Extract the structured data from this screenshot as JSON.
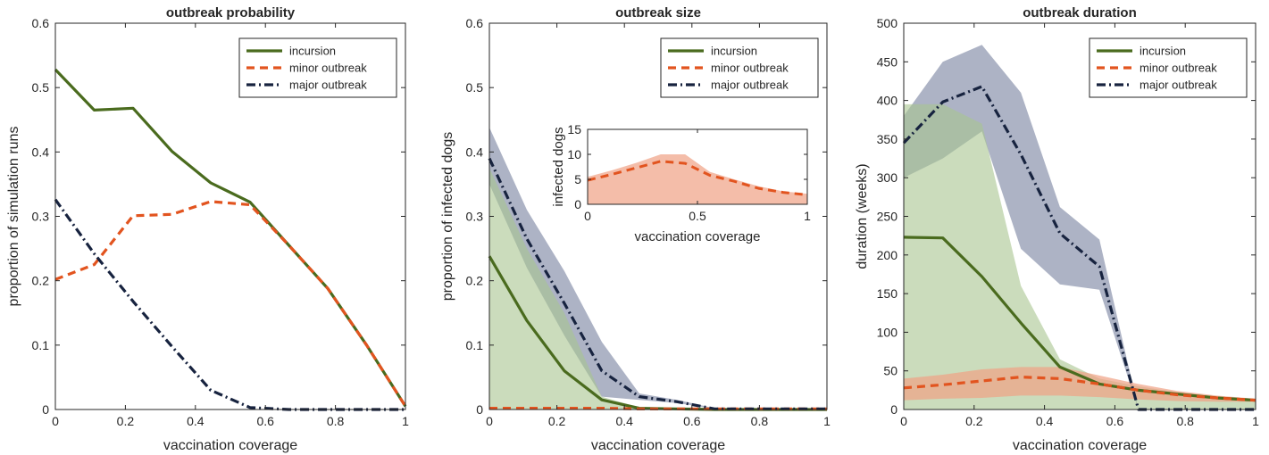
{
  "figure": {
    "panels": 3
  },
  "colors": {
    "incursion": "#4a6b1e",
    "minor": "#e2541f",
    "major": "#17233f",
    "incursion_band": "#a9c48f",
    "minor_band": "#f0a184",
    "major_band": "#8a93ad"
  },
  "chart_data": [
    {
      "type": "line",
      "title": "outbreak probability",
      "xlabel": "vaccination coverage",
      "ylabel": "proportion of simulation runs",
      "xlim": [
        0,
        1
      ],
      "ylim": [
        0,
        0.6
      ],
      "xticks": [
        0,
        0.2,
        0.4,
        0.6,
        0.8,
        1
      ],
      "xtick_labels": [
        "0",
        "0.2",
        "0.4",
        "0.6",
        "0.8",
        "1"
      ],
      "yticks": [
        0,
        0.1,
        0.2,
        0.3,
        0.4,
        0.5,
        0.6
      ],
      "ytick_labels": [
        "0",
        "0.1",
        "0.2",
        "0.3",
        "0.4",
        "0.5",
        "0.6"
      ],
      "legend": "top-right",
      "grid": false,
      "x": [
        0,
        0.111,
        0.222,
        0.333,
        0.444,
        0.556,
        0.667,
        0.778,
        0.889,
        1
      ],
      "series": [
        {
          "name": "incursion",
          "key": "incursion",
          "style": "solid",
          "values": [
            0.528,
            0.465,
            0.468,
            0.401,
            0.352,
            0.322,
            0.255,
            0.188,
            0.1,
            0.005
          ]
        },
        {
          "name": "minor outbreak",
          "key": "minor",
          "style": "dashed",
          "values": [
            0.202,
            0.225,
            0.301,
            0.303,
            0.323,
            0.318,
            0.255,
            0.188,
            0.1,
            0.005
          ]
        },
        {
          "name": "major outbreak",
          "key": "major",
          "style": "dashdot",
          "values": [
            0.326,
            0.242,
            0.168,
            0.098,
            0.03,
            0.003,
            0,
            0,
            0,
            0
          ]
        }
      ],
      "bands": []
    },
    {
      "type": "line",
      "title": "outbreak size",
      "xlabel": "vaccination coverage",
      "ylabel": "proportion of infected dogs",
      "xlim": [
        0,
        1
      ],
      "ylim": [
        0,
        0.6
      ],
      "xticks": [
        0,
        0.2,
        0.4,
        0.6,
        0.8,
        1
      ],
      "xtick_labels": [
        "0",
        "0.2",
        "0.4",
        "0.6",
        "0.8",
        "1"
      ],
      "yticks": [
        0,
        0.1,
        0.2,
        0.3,
        0.4,
        0.5,
        0.6
      ],
      "ytick_labels": [
        "0",
        "0.1",
        "0.2",
        "0.3",
        "0.4",
        "0.5",
        "0.6"
      ],
      "legend": "top-right",
      "grid": false,
      "x": [
        0,
        0.111,
        0.222,
        0.333,
        0.444,
        0.556,
        0.667,
        0.778,
        0.889,
        1
      ],
      "series": [
        {
          "name": "incursion",
          "key": "incursion",
          "style": "solid",
          "values": [
            0.238,
            0.138,
            0.06,
            0.015,
            0.002,
            0.001,
            0,
            0,
            0,
            0
          ]
        },
        {
          "name": "minor outbreak",
          "key": "minor",
          "style": "dashed",
          "values": [
            0.002,
            0.002,
            0.002,
            0.002,
            0.001,
            0.001,
            0.001,
            0.001,
            0.001,
            0.001
          ]
        },
        {
          "name": "major outbreak",
          "key": "major",
          "style": "dashdot",
          "values": [
            0.39,
            0.265,
            0.165,
            0.06,
            0.02,
            0.012,
            0.001,
            0.001,
            0.001,
            0.001
          ]
        }
      ],
      "bands": [
        {
          "key": "major_band",
          "upper": [
            0.438,
            0.31,
            0.215,
            0.105,
            0.025,
            0.015,
            0.002,
            0.002,
            0.002,
            0.002
          ],
          "lower": [
            0.35,
            0.22,
            0.115,
            0.02,
            0.015,
            0.01,
            0.001,
            0.001,
            0.001,
            0.001
          ]
        },
        {
          "key": "incursion_band",
          "upper": [
            0.375,
            0.25,
            0.15,
            0.02,
            0.003,
            0.002,
            0.001,
            0,
            0,
            0
          ],
          "lower": [
            0,
            0,
            0,
            0,
            0,
            0,
            0,
            0,
            0,
            0
          ]
        }
      ],
      "inset": {
        "type": "area",
        "xlabel": "vaccination coverage",
        "ylabel": "infected dogs",
        "xlim": [
          0,
          1
        ],
        "ylim": [
          0,
          15
        ],
        "xticks": [
          0,
          0.5,
          1
        ],
        "xtick_labels": [
          "0",
          "0.5",
          "1"
        ],
        "yticks": [
          0,
          5,
          10,
          15
        ],
        "ytick_labels": [
          "0",
          "5",
          "10",
          "15"
        ],
        "x": [
          0,
          0.111,
          0.222,
          0.333,
          0.444,
          0.556,
          0.667,
          0.778,
          0.889,
          1
        ],
        "series": [
          {
            "name": "minor outbreak",
            "key": "minor",
            "style": "dashed",
            "values": [
              4.8,
              6.0,
              7.3,
              8.6,
              8.2,
              5.8,
              4.6,
              3.2,
              2.4,
              1.9
            ]
          }
        ],
        "bands": [
          {
            "key": "minor_band",
            "upper": [
              5.5,
              6.8,
              8.3,
              10,
              10,
              6.5,
              5,
              3.6,
              2.6,
              2.1
            ],
            "lower": [
              0,
              0,
              0,
              0,
              0,
              0,
              0,
              0,
              0,
              0
            ]
          }
        ]
      }
    },
    {
      "type": "line",
      "title": "outbreak duration",
      "xlabel": "vaccination coverage",
      "ylabel": "duration (weeks)",
      "xlim": [
        0,
        1
      ],
      "ylim": [
        0,
        500
      ],
      "xticks": [
        0,
        0.2,
        0.4,
        0.6,
        0.8,
        1
      ],
      "xtick_labels": [
        "0",
        "0.2",
        "0.4",
        "0.6",
        "0.8",
        "1"
      ],
      "yticks": [
        0,
        50,
        100,
        150,
        200,
        250,
        300,
        350,
        400,
        450,
        500
      ],
      "ytick_labels": [
        "0",
        "50",
        "100",
        "150",
        "200",
        "250",
        "300",
        "350",
        "400",
        "450",
        "500"
      ],
      "legend": "top-right",
      "grid": false,
      "x": [
        0,
        0.111,
        0.222,
        0.333,
        0.444,
        0.556,
        0.667,
        0.778,
        0.889,
        1
      ],
      "series": [
        {
          "name": "incursion",
          "key": "incursion",
          "style": "solid",
          "values": [
            223,
            222,
            172,
            112,
            55,
            33,
            25,
            20,
            15,
            12
          ]
        },
        {
          "name": "minor outbreak",
          "key": "minor",
          "style": "dashed",
          "values": [
            28,
            32,
            37,
            42,
            40,
            33,
            25,
            19,
            15,
            12
          ]
        },
        {
          "name": "major outbreak",
          "key": "major",
          "style": "dashdot",
          "values": [
            345,
            398,
            418,
            330,
            228,
            185,
            0,
            0,
            0,
            0
          ]
        }
      ],
      "bands": [
        {
          "key": "major_band",
          "upper": [
            380,
            450,
            472,
            410,
            262,
            220,
            0,
            0,
            0,
            0
          ],
          "lower": [
            300,
            325,
            360,
            208,
            162,
            155,
            0,
            0,
            0,
            0
          ]
        },
        {
          "key": "incursion_band",
          "upper": [
            395,
            395,
            370,
            160,
            65,
            40,
            30,
            22,
            17,
            13
          ],
          "lower": [
            0,
            0,
            0,
            0,
            0,
            0,
            0,
            0,
            0,
            0
          ]
        },
        {
          "key": "minor_band",
          "upper": [
            40,
            45,
            52,
            55,
            55,
            44,
            33,
            24,
            18,
            14
          ],
          "lower": [
            12,
            14,
            15,
            18,
            18,
            16,
            13,
            11,
            10,
            10
          ]
        }
      ]
    }
  ]
}
